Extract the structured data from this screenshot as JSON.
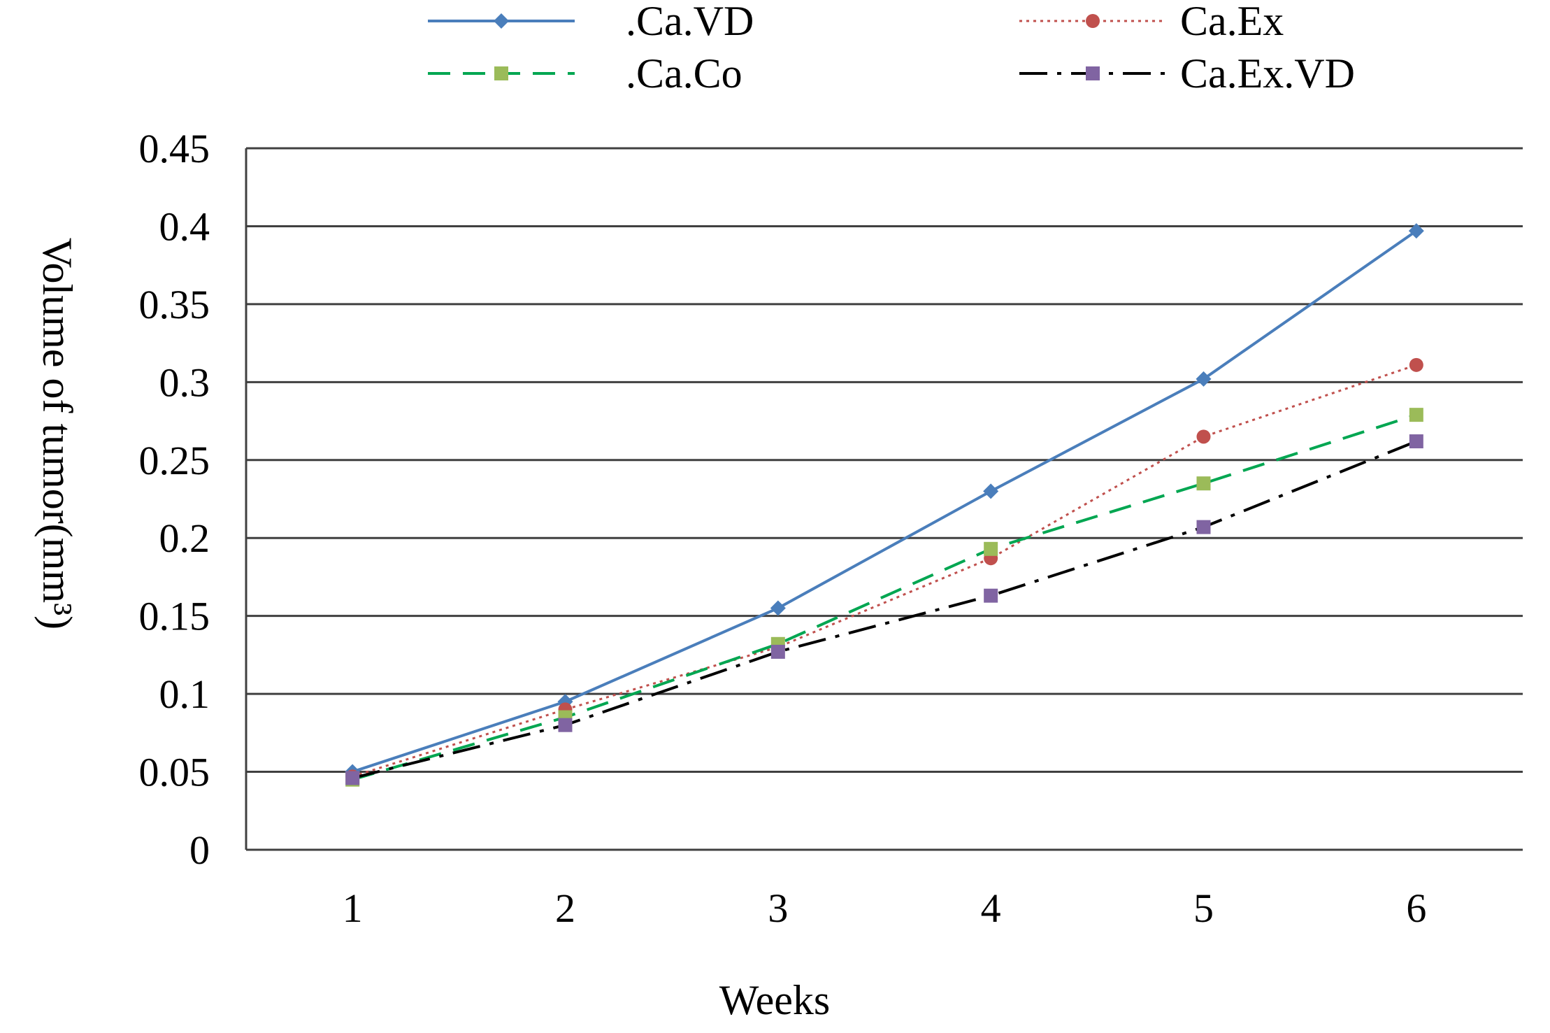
{
  "chart_data": {
    "type": "line",
    "title": "",
    "xlabel": "Weeks",
    "ylabel": "Volume of tumor(mm³)",
    "categories": [
      "1",
      "2",
      "3",
      "4",
      "5",
      "6"
    ],
    "ylim": [
      0,
      0.45
    ],
    "yticks": [
      "0",
      "0.05",
      "0.1",
      "0.15",
      "0.2",
      "0.25",
      "0.3",
      "0.35",
      "0.4",
      "0.45"
    ],
    "grid": "horizontal",
    "legend_position": "top",
    "series": [
      {
        "name": ".Ca.VD",
        "values": [
          0.05,
          0.095,
          0.155,
          0.23,
          0.302,
          0.397
        ],
        "color": "#4a7ebb",
        "dash": "solid",
        "marker": "diamond"
      },
      {
        "name": "Ca.Ex",
        "values": [
          0.047,
          0.09,
          0.13,
          0.187,
          0.265,
          0.311
        ],
        "color": "#c0504d",
        "dash": "dotted",
        "marker": "circle"
      },
      {
        "name": ".Ca.Co",
        "values": [
          0.045,
          0.085,
          0.132,
          0.193,
          0.235,
          0.279
        ],
        "color": "#00a651",
        "dash": "dashed",
        "marker": "square",
        "marker_color": "#9bbb59"
      },
      {
        "name": "Ca.Ex.VD",
        "values": [
          0.046,
          0.08,
          0.127,
          0.163,
          0.207,
          0.262
        ],
        "color": "#000000",
        "dash": "dashdot",
        "marker": "square",
        "marker_color": "#8064a2"
      }
    ]
  }
}
